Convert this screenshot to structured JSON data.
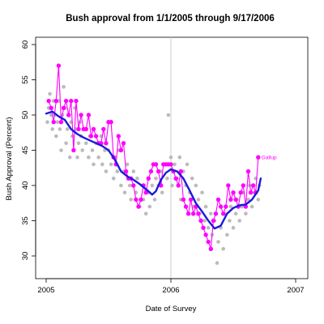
{
  "chart_data": {
    "type": "scatter",
    "title": "Bush approval from 1/1/2005 through 9/17/2006",
    "xlabel": "Date of Survey",
    "ylabel": "Bush Approval (Percent)",
    "xlim": [
      2005.0,
      2007.0
    ],
    "ylim": [
      28,
      61
    ],
    "x_ticks": [
      2005,
      2006,
      2007
    ],
    "x_tick_labels": [
      "2005",
      "2006",
      "2007"
    ],
    "y_ticks": [
      30,
      35,
      40,
      45,
      50,
      55,
      60
    ],
    "y_tick_labels": [
      "30",
      "35",
      "40",
      "45",
      "50",
      "55",
      "60"
    ],
    "vertical_reference_line": 2006.0,
    "grid": false,
    "colors": {
      "all_polls": "#bbbbbb",
      "trend": "#1a1adc",
      "gallup": "#ff00ff",
      "reference_line": "#cccccc"
    },
    "series": [
      {
        "role": "all_polls",
        "points": [
          [
            2005.01,
            49
          ],
          [
            2005.02,
            51
          ],
          [
            2005.03,
            53
          ],
          [
            2005.04,
            50
          ],
          [
            2005.05,
            48
          ],
          [
            2005.06,
            52
          ],
          [
            2005.07,
            50
          ],
          [
            2005.08,
            47
          ],
          [
            2005.09,
            49
          ],
          [
            2005.1,
            52
          ],
          [
            2005.11,
            48
          ],
          [
            2005.12,
            45
          ],
          [
            2005.13,
            50
          ],
          [
            2005.14,
            54
          ],
          [
            2005.15,
            51
          ],
          [
            2005.16,
            46
          ],
          [
            2005.17,
            48
          ],
          [
            2005.18,
            50
          ],
          [
            2005.19,
            44
          ],
          [
            2005.2,
            49
          ],
          [
            2005.21,
            47
          ],
          [
            2005.22,
            45
          ],
          [
            2005.23,
            51
          ],
          [
            2005.24,
            48
          ],
          [
            2005.25,
            44
          ],
          [
            2005.26,
            46
          ],
          [
            2005.27,
            49
          ],
          [
            2005.28,
            47
          ],
          [
            2005.29,
            45
          ],
          [
            2005.3,
            48
          ],
          [
            2005.32,
            46
          ],
          [
            2005.34,
            44
          ],
          [
            2005.35,
            47
          ],
          [
            2005.37,
            45
          ],
          [
            2005.38,
            43
          ],
          [
            2005.4,
            46
          ],
          [
            2005.42,
            44
          ],
          [
            2005.44,
            47
          ],
          [
            2005.45,
            43
          ],
          [
            2005.47,
            45
          ],
          [
            2005.48,
            42
          ],
          [
            2005.5,
            45
          ],
          [
            2005.52,
            43
          ],
          [
            2005.54,
            41
          ],
          [
            2005.55,
            44
          ],
          [
            2005.57,
            42
          ],
          [
            2005.58,
            45
          ],
          [
            2005.6,
            40
          ],
          [
            2005.62,
            42
          ],
          [
            2005.63,
            39
          ],
          [
            2005.65,
            43
          ],
          [
            2005.67,
            40
          ],
          [
            2005.68,
            38
          ],
          [
            2005.7,
            42
          ],
          [
            2005.72,
            39
          ],
          [
            2005.73,
            41
          ],
          [
            2005.75,
            37
          ],
          [
            2005.77,
            40
          ],
          [
            2005.78,
            38
          ],
          [
            2005.8,
            36
          ],
          [
            2005.82,
            39
          ],
          [
            2005.83,
            37
          ],
          [
            2005.85,
            40
          ],
          [
            2005.87,
            38
          ],
          [
            2005.88,
            41
          ],
          [
            2005.9,
            40
          ],
          [
            2005.92,
            42
          ],
          [
            2005.93,
            39
          ],
          [
            2005.95,
            43
          ],
          [
            2005.97,
            41
          ],
          [
            2005.98,
            50
          ],
          [
            2006.0,
            44
          ],
          [
            2006.01,
            40
          ],
          [
            2006.03,
            43
          ],
          [
            2006.05,
            41
          ],
          [
            2006.07,
            44
          ],
          [
            2006.08,
            38
          ],
          [
            2006.1,
            42
          ],
          [
            2006.12,
            40
          ],
          [
            2006.13,
            43
          ],
          [
            2006.15,
            39
          ],
          [
            2006.17,
            41
          ],
          [
            2006.18,
            37
          ],
          [
            2006.2,
            40
          ],
          [
            2006.22,
            38
          ],
          [
            2006.23,
            36
          ],
          [
            2006.25,
            39
          ],
          [
            2006.27,
            35
          ],
          [
            2006.28,
            37
          ],
          [
            2006.3,
            34
          ],
          [
            2006.32,
            36
          ],
          [
            2006.33,
            33
          ],
          [
            2006.35,
            35
          ],
          [
            2006.37,
            29
          ],
          [
            2006.38,
            32
          ],
          [
            2006.4,
            34
          ],
          [
            2006.42,
            31
          ],
          [
            2006.43,
            36
          ],
          [
            2006.45,
            33
          ],
          [
            2006.47,
            35
          ],
          [
            2006.48,
            37
          ],
          [
            2006.5,
            34
          ],
          [
            2006.52,
            36
          ],
          [
            2006.53,
            38
          ],
          [
            2006.55,
            35
          ],
          [
            2006.57,
            37
          ],
          [
            2006.58,
            39
          ],
          [
            2006.6,
            36
          ],
          [
            2006.62,
            38
          ],
          [
            2006.63,
            40
          ],
          [
            2006.65,
            37
          ],
          [
            2006.67,
            39
          ],
          [
            2006.68,
            41
          ],
          [
            2006.7,
            38
          ],
          [
            2006.71,
            40
          ]
        ]
      },
      {
        "role": "trend",
        "points": [
          [
            2005.0,
            50.2
          ],
          [
            2005.05,
            50.5
          ],
          [
            2005.1,
            49.8
          ],
          [
            2005.15,
            49.3
          ],
          [
            2005.2,
            48.0
          ],
          [
            2005.25,
            47.3
          ],
          [
            2005.3,
            46.8
          ],
          [
            2005.35,
            46.4
          ],
          [
            2005.4,
            46.0
          ],
          [
            2005.45,
            45.6
          ],
          [
            2005.5,
            45.0
          ],
          [
            2005.55,
            43.7
          ],
          [
            2005.6,
            42.0
          ],
          [
            2005.65,
            41.3
          ],
          [
            2005.7,
            40.8
          ],
          [
            2005.75,
            40.2
          ],
          [
            2005.8,
            39.5
          ],
          [
            2005.85,
            38.7
          ],
          [
            2005.88,
            39.2
          ],
          [
            2005.92,
            40.8
          ],
          [
            2005.96,
            41.8
          ],
          [
            2006.0,
            42.3
          ],
          [
            2006.05,
            42.0
          ],
          [
            2006.1,
            41.0
          ],
          [
            2006.15,
            39.3
          ],
          [
            2006.2,
            37.5
          ],
          [
            2006.25,
            36.3
          ],
          [
            2006.3,
            35.0
          ],
          [
            2006.35,
            33.9
          ],
          [
            2006.4,
            34.3
          ],
          [
            2006.45,
            36.0
          ],
          [
            2006.5,
            36.8
          ],
          [
            2006.55,
            37.2
          ],
          [
            2006.6,
            37.3
          ],
          [
            2006.65,
            38.0
          ],
          [
            2006.7,
            39.3
          ],
          [
            2006.72,
            41.0
          ]
        ]
      },
      {
        "name": "Gallup",
        "points": [
          [
            2005.02,
            52
          ],
          [
            2005.04,
            51
          ],
          [
            2005.06,
            49
          ],
          [
            2005.08,
            52
          ],
          [
            2005.1,
            57
          ],
          [
            2005.12,
            49
          ],
          [
            2005.14,
            51
          ],
          [
            2005.16,
            52
          ],
          [
            2005.18,
            50
          ],
          [
            2005.2,
            52
          ],
          [
            2005.22,
            45
          ],
          [
            2005.24,
            52
          ],
          [
            2005.26,
            48
          ],
          [
            2005.28,
            50
          ],
          [
            2005.3,
            48
          ],
          [
            2005.32,
            48
          ],
          [
            2005.34,
            50
          ],
          [
            2005.36,
            47
          ],
          [
            2005.38,
            48
          ],
          [
            2005.4,
            47
          ],
          [
            2005.42,
            46
          ],
          [
            2005.44,
            46
          ],
          [
            2005.46,
            48
          ],
          [
            2005.48,
            46
          ],
          [
            2005.5,
            49
          ],
          [
            2005.52,
            49
          ],
          [
            2005.54,
            44
          ],
          [
            2005.56,
            43
          ],
          [
            2005.58,
            47
          ],
          [
            2005.6,
            45
          ],
          [
            2005.62,
            46
          ],
          [
            2005.64,
            42
          ],
          [
            2005.66,
            41
          ],
          [
            2005.68,
            41
          ],
          [
            2005.7,
            40
          ],
          [
            2005.72,
            38
          ],
          [
            2005.74,
            37
          ],
          [
            2005.76,
            38
          ],
          [
            2005.78,
            40
          ],
          [
            2005.8,
            39
          ],
          [
            2005.82,
            41
          ],
          [
            2005.84,
            42
          ],
          [
            2005.86,
            43
          ],
          [
            2005.88,
            43
          ],
          [
            2005.9,
            42
          ],
          [
            2005.92,
            40
          ],
          [
            2005.94,
            43
          ],
          [
            2005.96,
            43
          ],
          [
            2005.98,
            43
          ],
          [
            2006.0,
            43
          ],
          [
            2006.02,
            42
          ],
          [
            2006.04,
            41
          ],
          [
            2006.06,
            40
          ],
          [
            2006.08,
            42
          ],
          [
            2006.1,
            38
          ],
          [
            2006.12,
            37
          ],
          [
            2006.14,
            36
          ],
          [
            2006.16,
            38
          ],
          [
            2006.18,
            36
          ],
          [
            2006.2,
            37
          ],
          [
            2006.22,
            36
          ],
          [
            2006.24,
            35
          ],
          [
            2006.26,
            34
          ],
          [
            2006.28,
            33
          ],
          [
            2006.3,
            32
          ],
          [
            2006.32,
            31
          ],
          [
            2006.34,
            35
          ],
          [
            2006.36,
            36
          ],
          [
            2006.38,
            38
          ],
          [
            2006.4,
            37
          ],
          [
            2006.42,
            36
          ],
          [
            2006.44,
            37
          ],
          [
            2006.46,
            40
          ],
          [
            2006.48,
            38
          ],
          [
            2006.5,
            39
          ],
          [
            2006.52,
            38
          ],
          [
            2006.54,
            37
          ],
          [
            2006.56,
            39
          ],
          [
            2006.58,
            40
          ],
          [
            2006.6,
            37
          ],
          [
            2006.62,
            42
          ],
          [
            2006.64,
            39
          ],
          [
            2006.66,
            40
          ],
          [
            2006.68,
            39
          ],
          [
            2006.7,
            44
          ]
        ]
      }
    ]
  }
}
